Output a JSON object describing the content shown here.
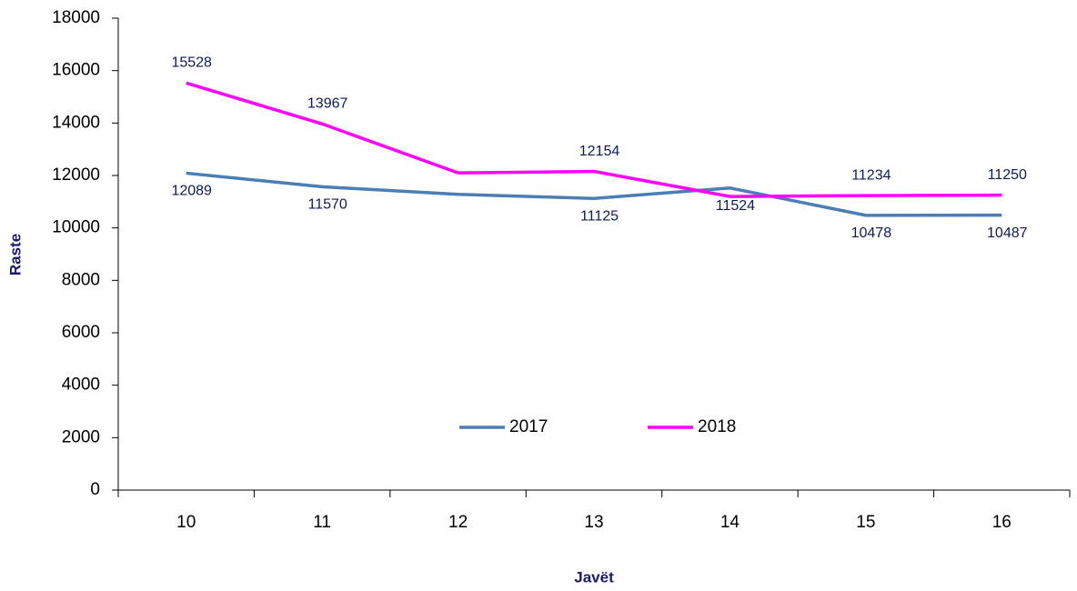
{
  "chart_data": {
    "type": "line",
    "x_label": "Javët",
    "y_label": "Raste",
    "categories": [
      "10",
      "11",
      "12",
      "13",
      "14",
      "15",
      "16"
    ],
    "series": [
      {
        "name": "2017",
        "color": "#4a7eb5",
        "values": [
          12089,
          11570,
          11280,
          11125,
          11524,
          10478,
          10487
        ],
        "value_labels": [
          "12089",
          "11570",
          null,
          "11125",
          "11524",
          "10478",
          "10487"
        ]
      },
      {
        "name": "2018",
        "color": "#ff00ff",
        "values": [
          15528,
          13967,
          12100,
          12154,
          11200,
          11234,
          11250
        ],
        "value_labels": [
          "15528",
          "13967",
          null,
          "12154",
          null,
          "11234",
          "11250"
        ]
      }
    ],
    "ylim": [
      0,
      18000
    ],
    "yticks": [
      0,
      2000,
      4000,
      6000,
      8000,
      10000,
      12000,
      14000,
      16000,
      18000
    ],
    "grid": false,
    "legend": "center"
  }
}
